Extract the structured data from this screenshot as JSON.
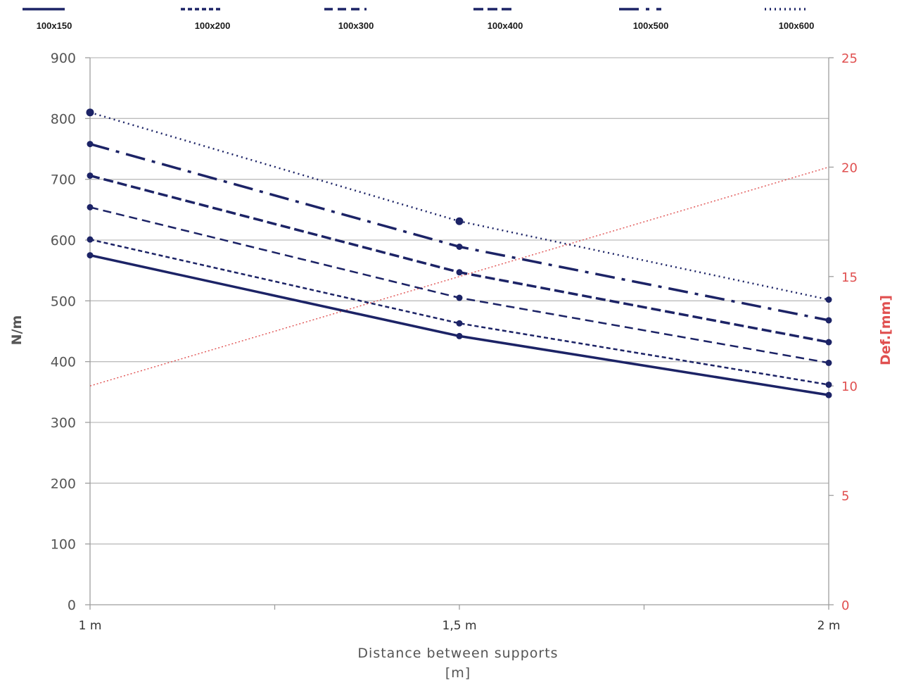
{
  "chart_data": {
    "type": "line",
    "title": "",
    "categories": [
      "1 m",
      "1,5 m",
      "2 m"
    ],
    "x": [
      1,
      1.5,
      2
    ],
    "xlabel_lines": [
      "Distance between supports",
      "[m]"
    ],
    "ylabel": "N/m",
    "ylim": [
      0,
      900
    ],
    "yticks": [
      0,
      100,
      200,
      300,
      400,
      500,
      600,
      700,
      800,
      900
    ],
    "y2label": "Def.[mm]",
    "y2lim": [
      0,
      25
    ],
    "y2ticks": [
      0,
      5,
      10,
      15,
      20,
      25
    ],
    "grid": true,
    "legend_position": "top",
    "series": [
      {
        "name": "100x150",
        "values": [
          575,
          442,
          345
        ],
        "dash": "solid",
        "width": 3.5
      },
      {
        "name": "100x200",
        "values": [
          601,
          463,
          362
        ],
        "dash": "6 4",
        "width": 2.5
      },
      {
        "name": "100x300",
        "values": [
          654,
          505,
          398
        ],
        "dash": "12 7",
        "width": 2.5
      },
      {
        "name": "100x400",
        "values": [
          706,
          547,
          432
        ],
        "dash": "14 6",
        "width": 3.5
      },
      {
        "name": "100x500",
        "values": [
          758,
          589,
          468
        ],
        "dash": "28 10 5 10",
        "width": 3.5
      },
      {
        "name": "100x600",
        "values": [
          810,
          631,
          502
        ],
        "dash": "2 5",
        "width": 2.5
      }
    ],
    "deflection_series": {
      "axis": "right",
      "x": [
        1,
        2
      ],
      "values": [
        10,
        20
      ]
    }
  },
  "colors": {
    "series": "#1c2366",
    "deflection": "#e05050",
    "grid": "#bdbdbd",
    "axis": "#9e9e9e"
  }
}
